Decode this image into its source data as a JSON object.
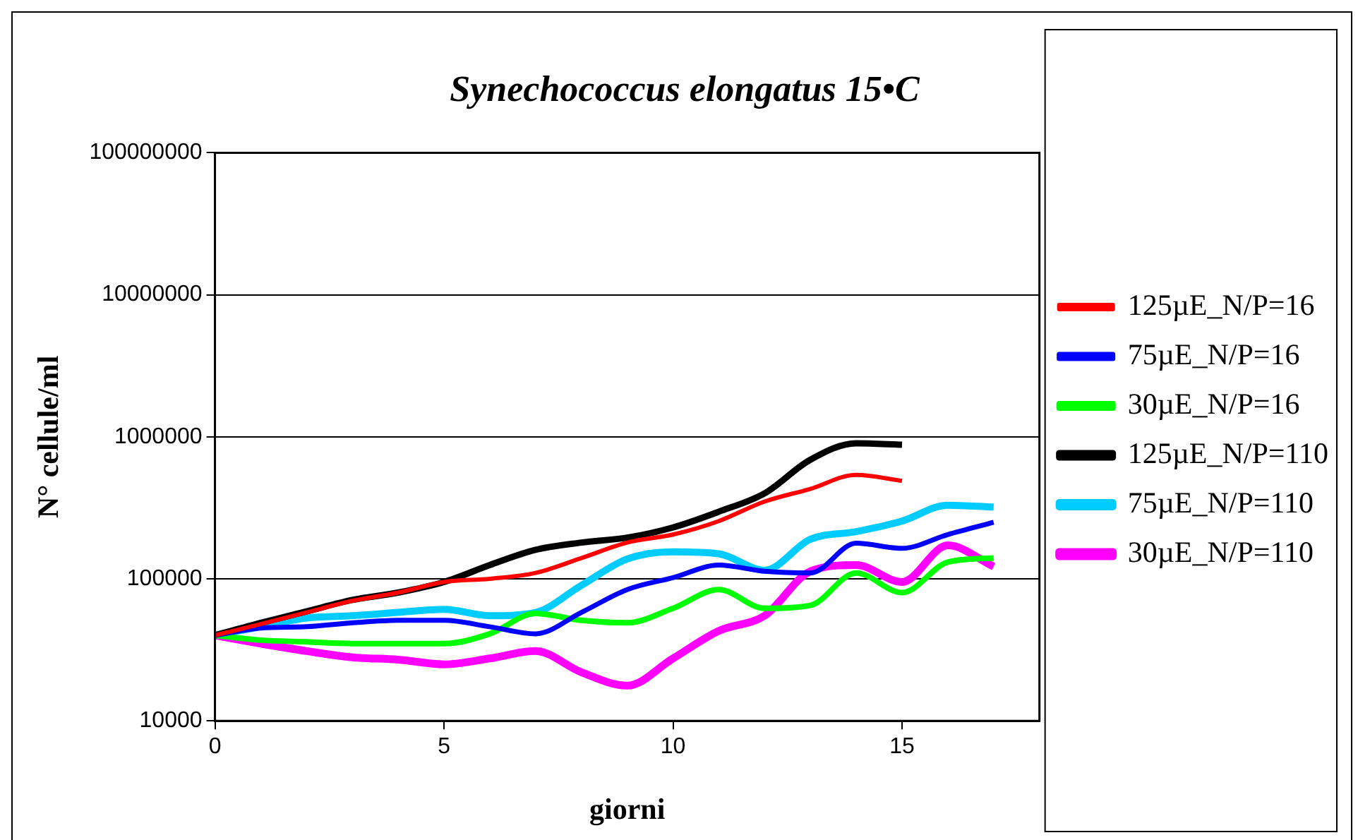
{
  "chart_data": {
    "type": "line",
    "title": "Synechococcus elongatus 15•C",
    "xlabel": "giorni",
    "ylabel": "N° cellule/ml",
    "x": [
      0,
      1,
      2,
      3,
      4,
      5,
      6,
      7,
      8,
      9,
      10,
      11,
      12,
      13,
      14,
      15,
      16,
      17
    ],
    "series": [
      {
        "name": "125µE_N/P=16",
        "color": "#ff0000",
        "x": [
          0,
          1,
          2,
          3,
          4,
          5,
          6,
          7,
          8,
          9,
          10,
          11,
          12,
          13,
          14,
          15
        ],
        "values": [
          40000,
          48000,
          58000,
          70000,
          80000,
          95000,
          100000,
          110000,
          140000,
          180000,
          205000,
          255000,
          350000,
          430000,
          540000,
          490000
        ]
      },
      {
        "name": "75µE_N/P=16",
        "color": "#0000ff",
        "values": [
          40000,
          45000,
          46000,
          49000,
          51000,
          51000,
          46000,
          41000,
          58000,
          84000,
          102000,
          125000,
          113000,
          110000,
          178000,
          164000,
          205000,
          250000
        ]
      },
      {
        "name": "30µE_N/P=16",
        "color": "#00ff00",
        "values": [
          40000,
          37000,
          36000,
          35000,
          35000,
          35000,
          41000,
          57000,
          51000,
          49000,
          62000,
          84000,
          62000,
          65000,
          110000,
          80000,
          131000,
          140000
        ]
      },
      {
        "name": "125µE_N/P=110",
        "color": "#000000",
        "x": [
          0,
          1,
          2,
          3,
          4,
          5,
          6,
          7,
          8,
          9,
          10,
          11,
          12,
          13,
          14,
          15
        ],
        "values": [
          40000,
          49000,
          59000,
          71000,
          80000,
          95000,
          125000,
          160000,
          180000,
          195000,
          230000,
          297000,
          400000,
          690000,
          900000,
          880000
        ]
      },
      {
        "name": "75µE_N/P=110",
        "color": "#00ccff",
        "values": [
          40000,
          46000,
          53000,
          55000,
          58000,
          61000,
          55000,
          58000,
          90000,
          138000,
          155000,
          150000,
          115000,
          190000,
          215000,
          255000,
          330000,
          320000
        ]
      },
      {
        "name": "30µE_N/P=110",
        "color": "#ff00ff",
        "values": [
          40000,
          35000,
          31000,
          28000,
          27000,
          25000,
          27500,
          31000,
          22000,
          17700,
          27500,
          43000,
          55000,
          113000,
          125000,
          95000,
          172000,
          122000
        ]
      }
    ],
    "xlim": [
      0,
      18
    ],
    "xticks": [
      0,
      5,
      10,
      15
    ],
    "ylim": [
      10000,
      100000000
    ],
    "yticks": [
      10000,
      100000,
      1000000,
      10000000,
      100000000
    ],
    "log": "y",
    "grid": "y",
    "legend": "right",
    "marker": "none",
    "line_style": "solid"
  }
}
